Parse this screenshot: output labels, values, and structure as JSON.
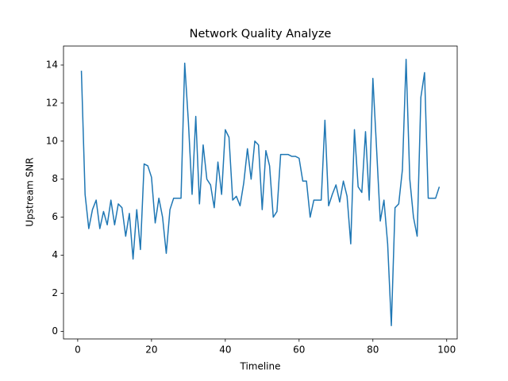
{
  "chart_data": {
    "type": "line",
    "title": "Network Quality Analyze",
    "x_label": "Timeline",
    "y_label": "Upstream SNR",
    "x": [
      1,
      2,
      3,
      4,
      5,
      6,
      7,
      8,
      9,
      10,
      11,
      12,
      13,
      14,
      15,
      16,
      17,
      18,
      19,
      20,
      21,
      22,
      23,
      24,
      25,
      26,
      27,
      28,
      29,
      30,
      31,
      32,
      33,
      34,
      35,
      36,
      37,
      38,
      39,
      40,
      41,
      42,
      43,
      44,
      45,
      46,
      47,
      48,
      49,
      50,
      51,
      52,
      53,
      54,
      55,
      56,
      57,
      58,
      59,
      60,
      61,
      62,
      63,
      64,
      65,
      66,
      67,
      68,
      69,
      70,
      71,
      72,
      73,
      74,
      75,
      76,
      77,
      78,
      79,
      80,
      81,
      82,
      83,
      84,
      85,
      86,
      87,
      88,
      89,
      90,
      91,
      92,
      93,
      94,
      95,
      96,
      97,
      98
    ],
    "series": [
      {
        "color": "#1f77b4",
        "values": [
          13.7,
          7.2,
          5.4,
          6.4,
          6.9,
          5.4,
          6.3,
          5.6,
          6.9,
          5.6,
          6.7,
          6.5,
          5.0,
          6.2,
          3.8,
          6.4,
          4.3,
          8.8,
          8.7,
          8.1,
          5.7,
          7.0,
          6.0,
          4.1,
          6.4,
          7.0,
          7.0,
          7.0,
          14.1,
          11.0,
          7.2,
          11.3,
          6.7,
          9.8,
          8.0,
          7.7,
          6.5,
          8.9,
          7.2,
          10.6,
          10.2,
          6.9,
          7.1,
          6.6,
          7.8,
          9.6,
          8.0,
          10.0,
          9.8,
          6.4,
          9.5,
          8.7,
          6.0,
          6.3,
          9.3,
          9.3,
          9.3,
          9.2,
          9.2,
          9.1,
          7.9,
          7.9,
          6.0,
          6.9,
          6.9,
          6.9,
          11.1,
          6.6,
          7.2,
          7.7,
          6.8,
          7.9,
          7.1,
          4.6,
          10.6,
          7.6,
          7.3,
          10.5,
          6.9,
          13.3,
          9.6,
          5.8,
          6.9,
          4.6,
          0.3,
          6.5,
          6.7,
          8.5,
          14.3,
          8.0,
          6.0,
          5.0,
          12.3,
          13.6,
          7.0,
          7.0,
          7.0,
          7.6
        ]
      }
    ],
    "xlim": [
      -3.85,
      102.85
    ],
    "xticks": [
      0,
      20,
      40,
      60,
      80,
      100
    ],
    "ylim": [
      -0.4,
      15.0
    ],
    "yticks": [
      0,
      2,
      4,
      6,
      8,
      10,
      12,
      14
    ]
  }
}
